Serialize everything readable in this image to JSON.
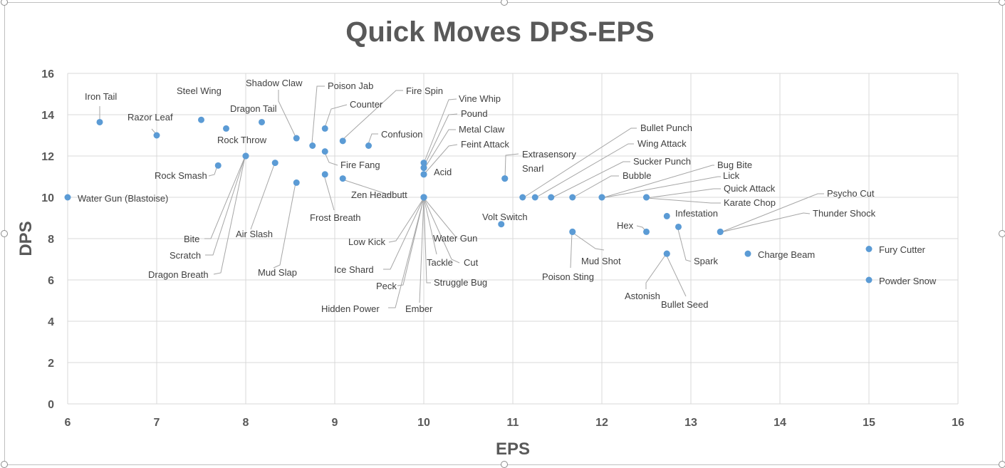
{
  "chart_data": {
    "type": "scatter",
    "title": "Quick Moves DPS-EPS",
    "xlabel": "EPS",
    "ylabel": "DPS",
    "xlim": [
      6,
      16
    ],
    "ylim": [
      0,
      16
    ],
    "xticks": [
      "6",
      "7",
      "8",
      "9",
      "10",
      "11",
      "12",
      "13",
      "14",
      "15",
      "16"
    ],
    "yticks": [
      "0",
      "2",
      "4",
      "6",
      "8",
      "10",
      "12",
      "14",
      "16"
    ],
    "grid": true,
    "color": "#5b9bd5",
    "points": [
      {
        "label": "Water Gun (Blastoise)",
        "x": 6.0,
        "y": 10.0
      },
      {
        "label": "Iron Tail",
        "x": 6.36,
        "y": 13.64
      },
      {
        "label": "Razor Leaf",
        "x": 7.0,
        "y": 13.0
      },
      {
        "label": "Steel Wing",
        "x": 7.5,
        "y": 13.75
      },
      {
        "label": "Dragon Tail",
        "x": 8.18,
        "y": 13.64
      },
      {
        "label": "Rock Throw",
        "x": 7.78,
        "y": 13.33
      },
      {
        "label": "Shadow Claw",
        "x": 8.57,
        "y": 12.86
      },
      {
        "label": "Poison Jab",
        "x": 8.75,
        "y": 12.5
      },
      {
        "label": "Counter",
        "x": 8.89,
        "y": 13.33
      },
      {
        "label": "Fire Spin",
        "x": 9.09,
        "y": 12.73
      },
      {
        "label": "Confusion",
        "x": 9.38,
        "y": 12.5
      },
      {
        "label": "Fire Fang",
        "x": 8.89,
        "y": 12.22
      },
      {
        "label": "Rock Smash",
        "x": 7.69,
        "y": 11.54
      },
      {
        "label": "Bite",
        "x": 8.0,
        "y": 12.0
      },
      {
        "label": "Scratch",
        "x": 8.0,
        "y": 12.0
      },
      {
        "label": "Dragon Breath",
        "x": 8.0,
        "y": 12.0
      },
      {
        "label": "Air Slash",
        "x": 8.33,
        "y": 11.67
      },
      {
        "label": "Mud Slap",
        "x": 8.57,
        "y": 10.71
      },
      {
        "label": "Frost Breath",
        "x": 8.89,
        "y": 11.11
      },
      {
        "label": "Zen Headbutt",
        "x": 9.09,
        "y": 10.91
      },
      {
        "label": "Vine Whip",
        "x": 10.0,
        "y": 11.67
      },
      {
        "label": "Pound",
        "x": 10.0,
        "y": 11.43
      },
      {
        "label": "Metal Claw",
        "x": 10.0,
        "y": 11.43
      },
      {
        "label": "Feint Attack",
        "x": 10.0,
        "y": 11.11
      },
      {
        "label": "Acid",
        "x": 10.0,
        "y": 11.11
      },
      {
        "label": "Low Kick",
        "x": 10.0,
        "y": 10.0
      },
      {
        "label": "Ice Shard",
        "x": 10.0,
        "y": 10.0
      },
      {
        "label": "Peck",
        "x": 10.0,
        "y": 10.0
      },
      {
        "label": "Hidden Power",
        "x": 10.0,
        "y": 10.0
      },
      {
        "label": "Ember",
        "x": 10.0,
        "y": 10.0
      },
      {
        "label": "Struggle Bug",
        "x": 10.0,
        "y": 10.0
      },
      {
        "label": "Tackle",
        "x": 10.0,
        "y": 10.0
      },
      {
        "label": "Cut",
        "x": 10.0,
        "y": 10.0
      },
      {
        "label": "Water Gun",
        "x": 10.0,
        "y": 10.0
      },
      {
        "label": "Extrasensory",
        "x": 10.91,
        "y": 10.91
      },
      {
        "label": "Snarl",
        "x": 10.91,
        "y": 10.91
      },
      {
        "label": "Volt Switch",
        "x": 10.87,
        "y": 8.7
      },
      {
        "label": "Bullet Punch",
        "x": 11.11,
        "y": 10.0
      },
      {
        "label": "Wing Attack",
        "x": 11.25,
        "y": 10.0
      },
      {
        "label": "Sucker Punch",
        "x": 11.43,
        "y": 10.0
      },
      {
        "label": "Bubble",
        "x": 11.67,
        "y": 10.0
      },
      {
        "label": "Bug Bite",
        "x": 12.0,
        "y": 10.0
      },
      {
        "label": "Lick",
        "x": 12.0,
        "y": 10.0
      },
      {
        "label": "Quick Attack",
        "x": 12.5,
        "y": 10.0
      },
      {
        "label": "Karate Chop",
        "x": 12.5,
        "y": 10.0
      },
      {
        "label": "Infestation",
        "x": 12.73,
        "y": 9.09
      },
      {
        "label": "Hex",
        "x": 12.5,
        "y": 8.33
      },
      {
        "label": "Spark",
        "x": 12.86,
        "y": 8.57
      },
      {
        "label": "Mud Shot",
        "x": 11.67,
        "y": 8.33
      },
      {
        "label": "Poison Sting",
        "x": 11.67,
        "y": 8.33
      },
      {
        "label": "Astonish",
        "x": 12.73,
        "y": 7.27
      },
      {
        "label": "Bullet Seed",
        "x": 12.73,
        "y": 7.27
      },
      {
        "label": "Psycho Cut",
        "x": 13.33,
        "y": 8.33
      },
      {
        "label": "Thunder Shock",
        "x": 13.33,
        "y": 8.33
      },
      {
        "label": "Charge Beam",
        "x": 13.64,
        "y": 7.27
      },
      {
        "label": "Fury Cutter",
        "x": 15.0,
        "y": 7.5
      },
      {
        "label": "Powder Snow",
        "x": 15.0,
        "y": 6.0
      }
    ]
  }
}
